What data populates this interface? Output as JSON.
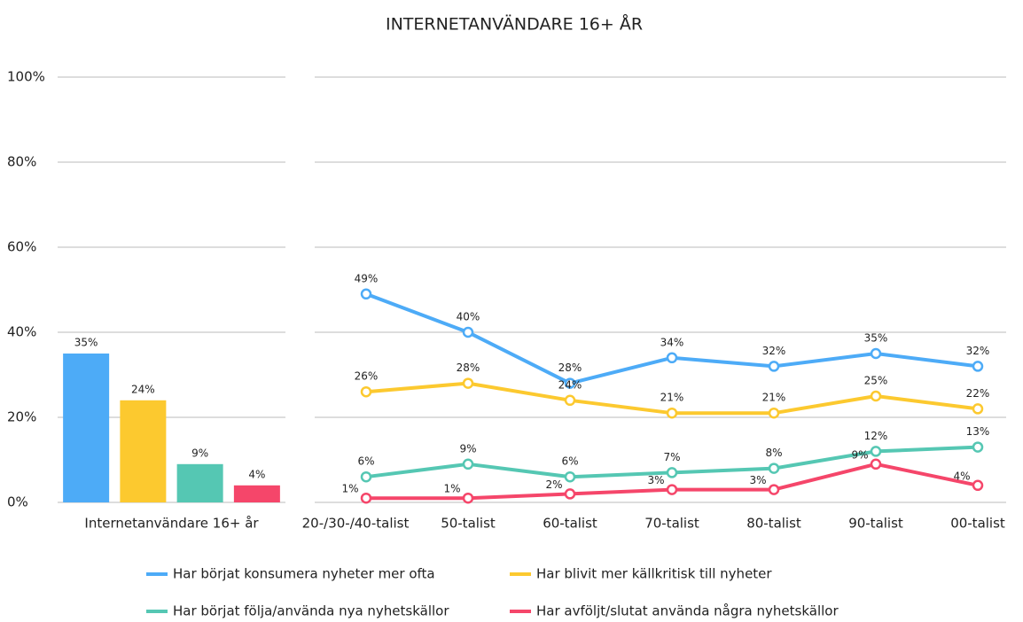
{
  "chart_data": [
    {
      "type": "bar",
      "title": "INTERNETANVÄNDARE 16+ ÅR",
      "categories": [
        "Internetanvändare 16+ år"
      ],
      "series": [
        {
          "color": "#4dabf7",
          "values": [
            35
          ],
          "value_labels": [
            "35%"
          ]
        },
        {
          "color": "#fcc92f",
          "values": [
            24
          ],
          "value_labels": [
            "24%"
          ]
        },
        {
          "color": "#55c7b3",
          "values": [
            9
          ],
          "value_labels": [
            "9%"
          ]
        },
        {
          "color": "#f5466a",
          "values": [
            4
          ],
          "value_labels": [
            "4%"
          ]
        }
      ],
      "ylim": [
        0,
        100
      ],
      "yticks": [
        {
          "value": 0,
          "label": "0%"
        },
        {
          "value": 20,
          "label": "20%"
        },
        {
          "value": 40,
          "label": "40%"
        },
        {
          "value": 60,
          "label": "60%"
        },
        {
          "value": 80,
          "label": "80%"
        },
        {
          "value": 100,
          "label": "100%"
        }
      ],
      "grid": true
    },
    {
      "type": "line",
      "categories": [
        "20-/30-/40-talist",
        "50-talist",
        "60-talist",
        "70-talist",
        "80-talist",
        "90-talist",
        "00-talist"
      ],
      "series": [
        {
          "name": "Har börjat konsumera nyheter mer ofta",
          "color": "#4dabf7",
          "values": [
            49,
            40,
            28,
            34,
            32,
            35,
            32
          ],
          "value_labels": [
            "49%",
            "40%",
            "28%",
            "34%",
            "32%",
            "35%",
            "32%"
          ]
        },
        {
          "name": "Har blivit mer källkritisk till nyheter",
          "color": "#fcc92f",
          "values": [
            26,
            28,
            24,
            21,
            21,
            25,
            22
          ],
          "value_labels": [
            "26%",
            "28%",
            "24%",
            "21%",
            "21%",
            "25%",
            "22%"
          ]
        },
        {
          "name": "Har börjat följa/använda nya nyhetskällor",
          "color": "#55c7b3",
          "values": [
            6,
            9,
            6,
            7,
            8,
            12,
            13
          ],
          "value_labels": [
            "6%",
            "9%",
            "6%",
            "7%",
            "8%",
            "12%",
            "13%"
          ]
        },
        {
          "name": "Har avföljt/slutat använda några nyhetskällor",
          "color": "#f5466a",
          "values": [
            1,
            1,
            2,
            3,
            3,
            9,
            4
          ],
          "value_labels": [
            "1%",
            "1%",
            "2%",
            "3%",
            "3%",
            "9%",
            "4%"
          ]
        }
      ],
      "ylim": [
        0,
        100
      ],
      "yticks": [
        0,
        20,
        40,
        60,
        80,
        100
      ],
      "grid": true
    }
  ]
}
